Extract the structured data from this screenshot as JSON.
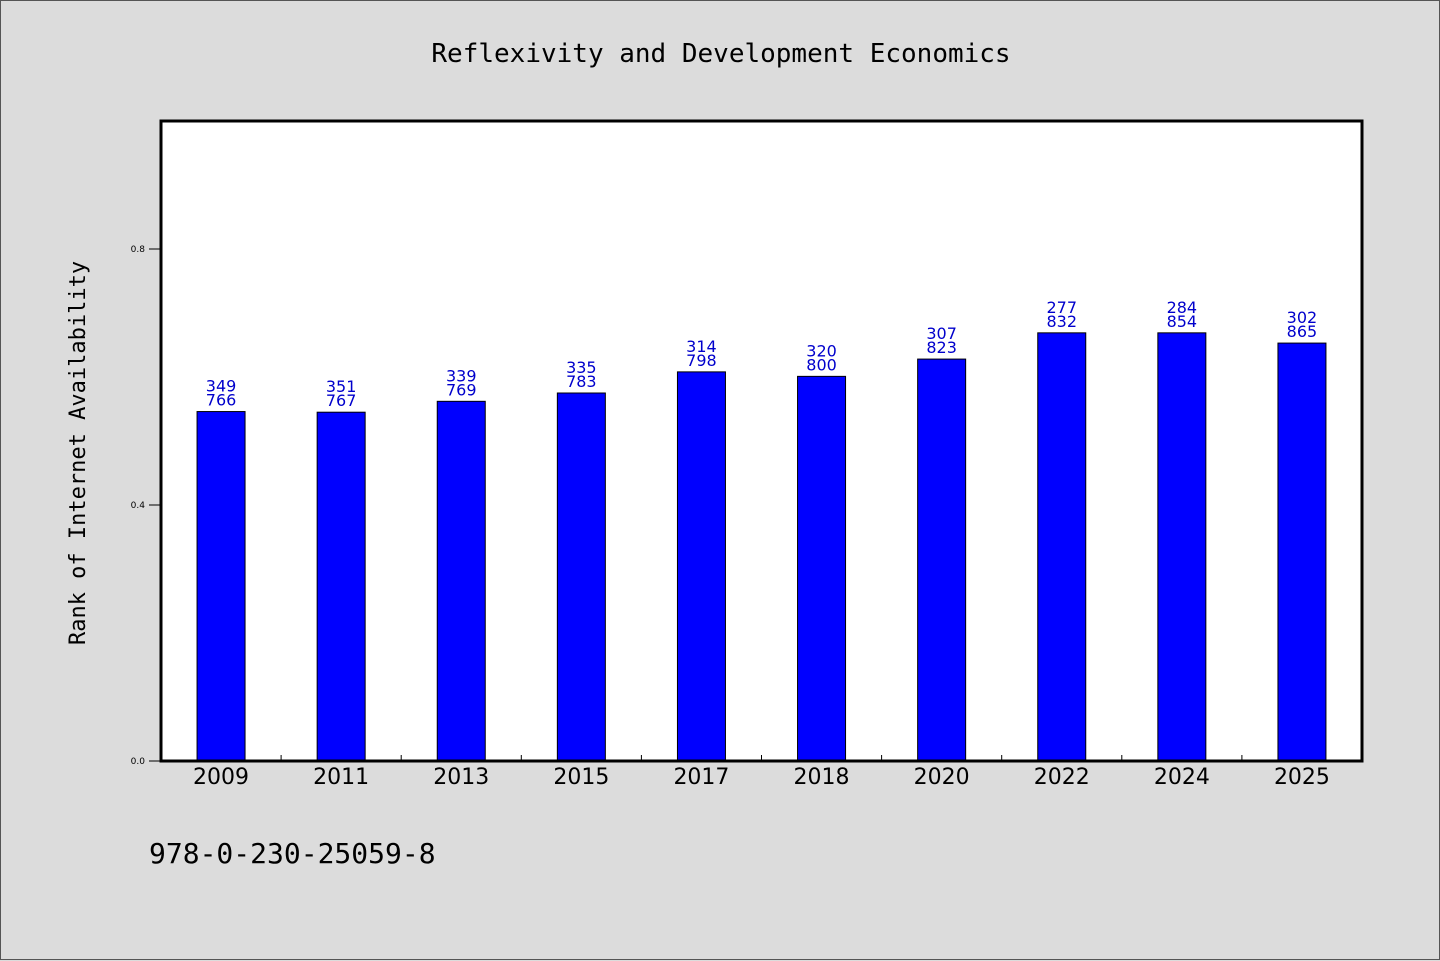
{
  "colors": {
    "background": "#dcdcdc",
    "plot_background": "#ffffff",
    "bar": "#0000ff",
    "bar_label": "#0000cc"
  },
  "footer_text": "978-0-230-25059-8",
  "chart_data": {
    "type": "bar",
    "title": "Reflexivity and Development Economics",
    "xlabel": "",
    "ylabel": "Rank of Internet Availability",
    "categories": [
      "2009",
      "2011",
      "2013",
      "2015",
      "2017",
      "2018",
      "2020",
      "2022",
      "2024",
      "2025"
    ],
    "values": [
      0.546,
      0.545,
      0.562,
      0.575,
      0.608,
      0.601,
      0.628,
      0.669,
      0.669,
      0.653
    ],
    "label_top": [
      "349",
      "351",
      "339",
      "335",
      "314",
      "320",
      "307",
      "277",
      "284",
      "302"
    ],
    "label_bottom": [
      "766",
      "767",
      "769",
      "783",
      "798",
      "800",
      "823",
      "832",
      "854",
      "865"
    ],
    "ylim": [
      0,
      1.0
    ],
    "yticks": [
      0.0,
      0.4,
      0.8
    ],
    "ytick_labels": [
      "0.0",
      "0.4",
      "0.8"
    ],
    "grid": false,
    "legend": "none"
  }
}
